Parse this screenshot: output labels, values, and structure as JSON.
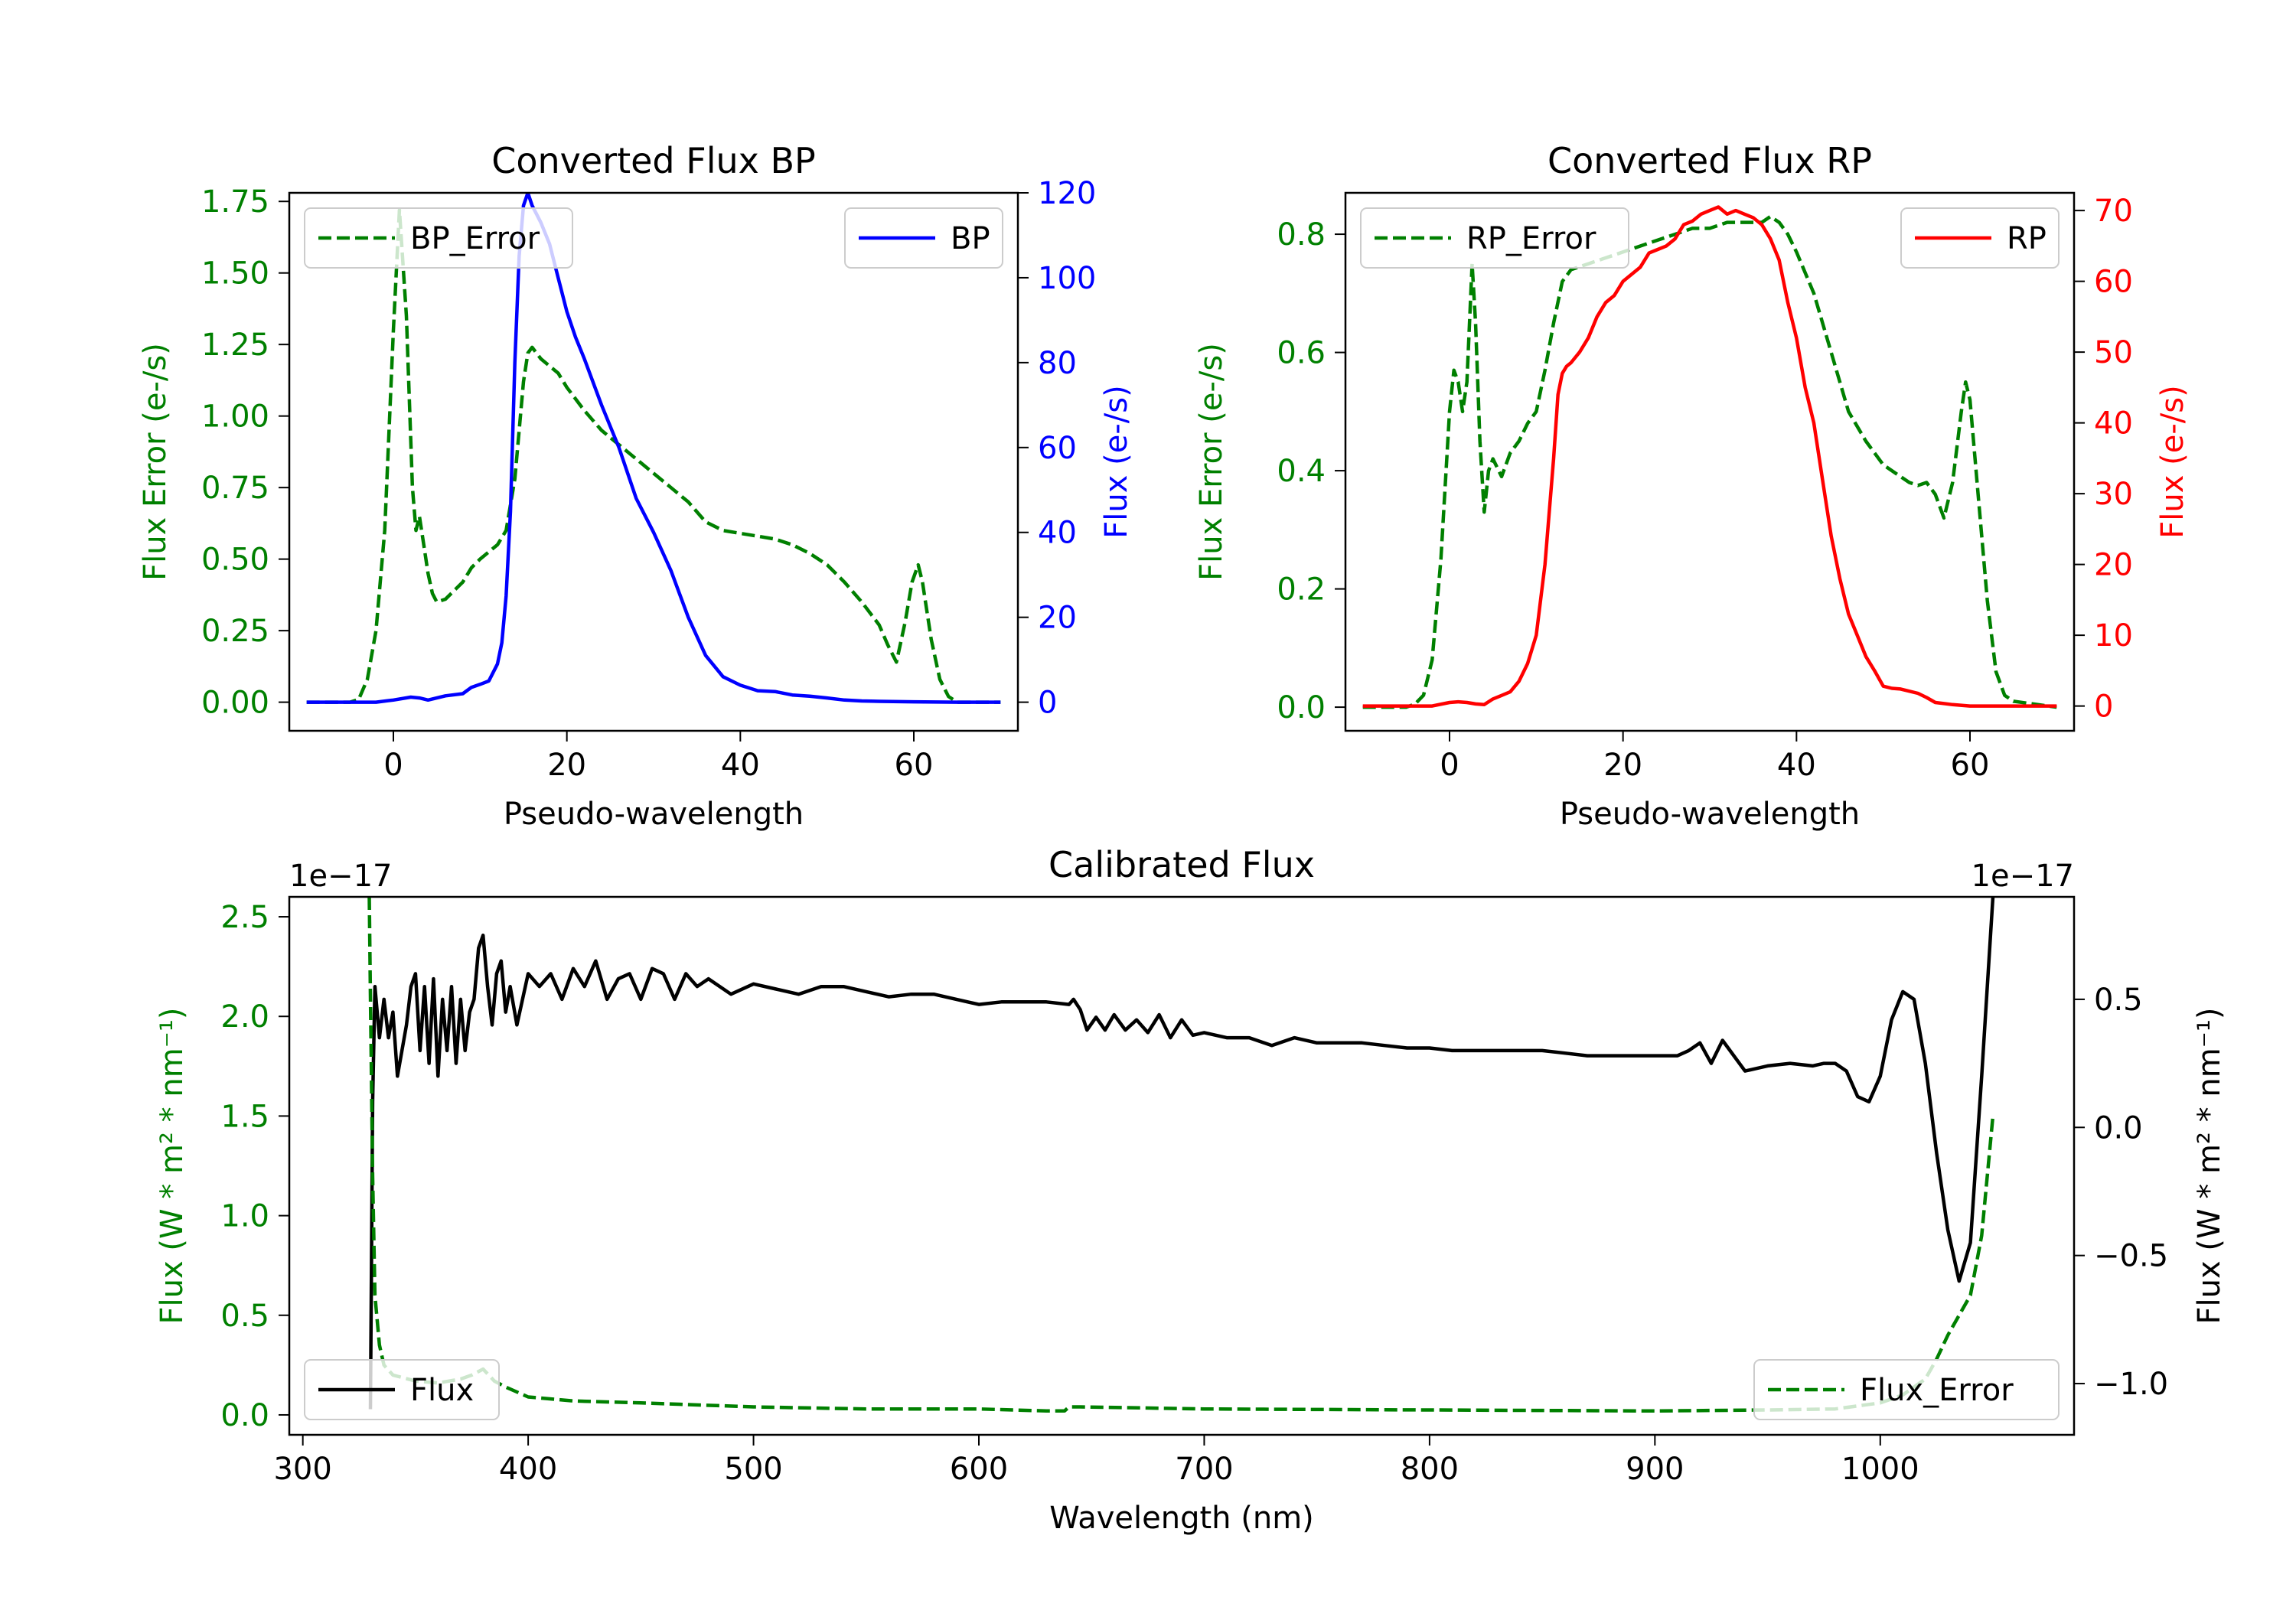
{
  "chart_data": [
    {
      "type": "line",
      "title": "Converted Flux BP",
      "xlabel": "Pseudo-wavelength",
      "ylabel_left": "Flux Error (e-/s)",
      "ylabel_right": "Flux (e-/s)",
      "xlim": [
        -12,
        72
      ],
      "ylim_left": [
        -0.1,
        1.78
      ],
      "ylim_right": [
        -6.74,
        120
      ],
      "xticks": [
        "0",
        "20",
        "40",
        "60"
      ],
      "yticks_left": [
        "0.00",
        "0.25",
        "0.50",
        "0.75",
        "1.00",
        "1.25",
        "1.50",
        "1.75"
      ],
      "yticks_right": [
        "0",
        "20",
        "40",
        "60",
        "80",
        "100",
        "120"
      ],
      "colors": {
        "left_axis": "#008000",
        "right_axis": "#0000ff"
      },
      "legend_left": {
        "label": "BP_Error",
        "placement": "upper-left"
      },
      "legend_right": {
        "label": "BP",
        "placement": "upper-right"
      },
      "series": [
        {
          "name": "BP_Error",
          "axis": "left",
          "style": "dashed",
          "color": "#008000",
          "x": [
            -10,
            -5,
            -4,
            -3,
            -2,
            -1,
            0,
            0.7,
            1.5,
            2.2,
            2.6,
            3,
            3.5,
            4,
            4.5,
            5,
            6,
            8,
            9,
            10,
            12,
            13,
            14,
            15,
            15.5,
            16,
            17,
            19,
            20,
            22,
            24,
            26,
            28,
            30,
            32,
            34,
            36,
            38,
            40,
            42,
            44,
            46,
            48,
            50,
            52,
            54,
            56,
            57,
            58,
            59,
            59.8,
            60.5,
            61,
            62,
            63,
            64,
            65,
            67,
            70
          ],
          "values": [
            0,
            0,
            0.01,
            0.08,
            0.25,
            0.6,
            1.3,
            1.72,
            1.35,
            0.75,
            0.6,
            0.65,
            0.55,
            0.45,
            0.38,
            0.35,
            0.36,
            0.42,
            0.47,
            0.5,
            0.55,
            0.6,
            0.78,
            1.12,
            1.22,
            1.24,
            1.2,
            1.15,
            1.1,
            1.02,
            0.95,
            0.9,
            0.85,
            0.8,
            0.75,
            0.7,
            0.63,
            0.6,
            0.59,
            0.58,
            0.57,
            0.55,
            0.52,
            0.48,
            0.42,
            0.35,
            0.27,
            0.2,
            0.14,
            0.28,
            0.42,
            0.48,
            0.42,
            0.22,
            0.08,
            0.02,
            0,
            0,
            0
          ]
        },
        {
          "name": "BP",
          "axis": "right",
          "style": "solid",
          "color": "#0000ff",
          "x": [
            -10,
            -2,
            0,
            2,
            3,
            4,
            6,
            8,
            9,
            10,
            11,
            12,
            12.5,
            13,
            13.5,
            14,
            14.5,
            15,
            15.5,
            16,
            16.5,
            17,
            18,
            19,
            20,
            21,
            22,
            24,
            26,
            28,
            30,
            32,
            34,
            36,
            38,
            40,
            42,
            44,
            46,
            48,
            50,
            52,
            54,
            56,
            60,
            65,
            70
          ],
          "values": [
            0,
            0,
            0.5,
            1.2,
            1.0,
            0.5,
            1.5,
            2,
            3.5,
            4.2,
            5,
            9,
            14,
            25,
            45,
            80,
            105,
            117,
            120,
            117,
            115,
            113,
            108,
            100,
            92,
            86,
            81,
            70,
            60,
            48,
            40,
            31,
            20,
            11,
            6,
            4,
            2.7,
            2.5,
            1.7,
            1.4,
            1,
            0.5,
            0.3,
            0.2,
            0.1,
            0,
            0
          ]
        }
      ]
    },
    {
      "type": "line",
      "title": "Converted Flux RP",
      "xlabel": "Pseudo-wavelength",
      "ylabel_left": "Flux Error (e-/s)",
      "ylabel_right": "Flux (e-/s)",
      "xlim": [
        -12,
        72
      ],
      "ylim_left": [
        -0.04,
        0.87
      ],
      "ylim_right": [
        -3.5,
        72.5
      ],
      "xticks": [
        "0",
        "20",
        "40",
        "60"
      ],
      "yticks_left": [
        "0.0",
        "0.2",
        "0.4",
        "0.6",
        "0.8"
      ],
      "yticks_right": [
        "0",
        "10",
        "20",
        "30",
        "40",
        "50",
        "60",
        "70"
      ],
      "colors": {
        "left_axis": "#008000",
        "right_axis": "#ff0000"
      },
      "legend_left": {
        "label": "RP_Error",
        "placement": "upper-left"
      },
      "legend_right": {
        "label": "RP",
        "placement": "upper-right"
      },
      "series": [
        {
          "name": "RP_Error",
          "axis": "left",
          "style": "dashed",
          "color": "#008000",
          "x": [
            -10,
            -5,
            -4,
            -3,
            -2,
            -1,
            0,
            0.5,
            1,
            1.5,
            2,
            2.6,
            3,
            3.5,
            4,
            4.5,
            5,
            6,
            7,
            8,
            9,
            10,
            11,
            12,
            13,
            14,
            16,
            18,
            20,
            22,
            24,
            26,
            28,
            30,
            32,
            34,
            36,
            37,
            38,
            39,
            40,
            42,
            44,
            46,
            48,
            50,
            52,
            53,
            54,
            55,
            56,
            57,
            58,
            59,
            59.5,
            60,
            61,
            62,
            63,
            64,
            65,
            70
          ],
          "values": [
            0,
            0,
            0.005,
            0.02,
            0.08,
            0.25,
            0.5,
            0.57,
            0.55,
            0.5,
            0.55,
            0.75,
            0.65,
            0.45,
            0.33,
            0.4,
            0.42,
            0.39,
            0.43,
            0.45,
            0.48,
            0.5,
            0.57,
            0.65,
            0.72,
            0.74,
            0.75,
            0.76,
            0.77,
            0.78,
            0.79,
            0.8,
            0.81,
            0.81,
            0.82,
            0.82,
            0.82,
            0.83,
            0.82,
            0.8,
            0.77,
            0.7,
            0.6,
            0.5,
            0.45,
            0.41,
            0.39,
            0.38,
            0.375,
            0.38,
            0.36,
            0.32,
            0.38,
            0.5,
            0.55,
            0.52,
            0.35,
            0.18,
            0.06,
            0.02,
            0.01,
            0
          ]
        },
        {
          "name": "RP",
          "axis": "right",
          "style": "solid",
          "color": "#ff0000",
          "x": [
            -10,
            -2,
            0,
            1,
            2,
            3,
            4,
            5,
            6,
            7,
            8,
            9,
            10,
            11,
            12,
            12.5,
            13,
            13.5,
            14,
            15,
            16,
            17,
            18,
            19,
            20,
            21,
            22,
            23,
            24,
            25,
            26,
            27,
            28,
            29,
            30,
            31,
            32,
            33,
            34,
            35,
            36,
            37,
            38,
            39,
            40,
            41,
            42,
            43,
            44,
            45,
            46,
            47,
            48,
            49,
            50,
            51,
            52,
            54,
            55,
            56,
            58,
            60,
            65,
            70
          ],
          "values": [
            0,
            0,
            0.5,
            0.6,
            0.5,
            0.3,
            0.2,
            1,
            1.5,
            2,
            3.5,
            6,
            10,
            20,
            35,
            44,
            47,
            48,
            48.5,
            50,
            52,
            55,
            57,
            58,
            60,
            61,
            62,
            64,
            64.5,
            65,
            66,
            68,
            68.5,
            69.5,
            70,
            70.5,
            69.5,
            70,
            69.5,
            69,
            68,
            66,
            63,
            57,
            52,
            45,
            40,
            32,
            24,
            18,
            13,
            10,
            7,
            5,
            2.8,
            2.5,
            2.4,
            1.8,
            1.2,
            0.5,
            0.2,
            0,
            0,
            0
          ]
        }
      ]
    },
    {
      "type": "line",
      "title": "Calibrated Flux",
      "xlabel": "Wavelength (nm)",
      "ylabel_left": "Flux (W * m² * nm⁻¹)",
      "ylabel_right": "Flux (W * m² * nm⁻¹)",
      "offset_left": "1e−17",
      "offset_right": "1e−17",
      "xlim": [
        294,
        1086
      ],
      "ylim_left": [
        -0.1,
        2.6
      ],
      "ylim_right": [
        -1.2,
        0.9
      ],
      "xticks": [
        "300",
        "400",
        "500",
        "600",
        "700",
        "800",
        "900",
        "1000"
      ],
      "yticks_left": [
        "0.0",
        "0.5",
        "1.0",
        "1.5",
        "2.0",
        "2.5"
      ],
      "yticks_right": [
        "−1.0",
        "−0.5",
        "0.0",
        "0.5"
      ],
      "colors": {
        "left_axis": "#008000",
        "right_axis": "#000000"
      },
      "legend_left": {
        "label": "Flux",
        "placement": "lower-left"
      },
      "legend_right": {
        "label": "Flux_Error",
        "placement": "lower-right"
      },
      "series": [
        {
          "name": "Flux",
          "axis": "right",
          "style": "solid",
          "color": "#000000",
          "x": [
            330,
            331,
            332,
            334,
            336,
            338,
            340,
            342,
            344,
            346,
            348,
            350,
            352,
            354,
            356,
            358,
            360,
            362,
            364,
            366,
            368,
            370,
            372,
            374,
            376,
            378,
            380,
            382,
            384,
            386,
            388,
            390,
            392,
            395,
            400,
            405,
            410,
            415,
            420,
            425,
            430,
            435,
            440,
            445,
            450,
            455,
            460,
            465,
            470,
            475,
            480,
            490,
            500,
            510,
            520,
            530,
            540,
            550,
            560,
            570,
            580,
            590,
            600,
            610,
            620,
            630,
            640,
            642,
            645,
            648,
            652,
            656,
            660,
            665,
            670,
            675,
            680,
            685,
            690,
            695,
            700,
            710,
            720,
            730,
            740,
            750,
            760,
            770,
            780,
            790,
            800,
            810,
            820,
            830,
            840,
            850,
            860,
            870,
            880,
            890,
            900,
            910,
            915,
            920,
            925,
            930,
            940,
            950,
            960,
            970,
            975,
            980,
            985,
            990,
            995,
            1000,
            1005,
            1010,
            1015,
            1020,
            1025,
            1030,
            1035,
            1040,
            1045,
            1050
          ],
          "values": [
            -1.1,
            0.1,
            0.55,
            0.35,
            0.5,
            0.35,
            0.45,
            0.2,
            0.3,
            0.4,
            0.55,
            0.6,
            0.3,
            0.55,
            0.25,
            0.58,
            0.2,
            0.5,
            0.3,
            0.55,
            0.25,
            0.5,
            0.3,
            0.45,
            0.5,
            0.7,
            0.75,
            0.55,
            0.4,
            0.6,
            0.65,
            0.45,
            0.55,
            0.4,
            0.6,
            0.55,
            0.6,
            0.5,
            0.62,
            0.55,
            0.65,
            0.5,
            0.58,
            0.6,
            0.5,
            0.62,
            0.6,
            0.5,
            0.6,
            0.55,
            0.58,
            0.52,
            0.56,
            0.54,
            0.52,
            0.55,
            0.55,
            0.53,
            0.51,
            0.52,
            0.52,
            0.5,
            0.48,
            0.49,
            0.49,
            0.49,
            0.48,
            0.5,
            0.46,
            0.38,
            0.43,
            0.38,
            0.44,
            0.38,
            0.42,
            0.37,
            0.44,
            0.35,
            0.42,
            0.36,
            0.37,
            0.35,
            0.35,
            0.32,
            0.35,
            0.33,
            0.33,
            0.33,
            0.32,
            0.31,
            0.31,
            0.3,
            0.3,
            0.3,
            0.3,
            0.3,
            0.29,
            0.28,
            0.28,
            0.28,
            0.28,
            0.28,
            0.3,
            0.33,
            0.25,
            0.34,
            0.22,
            0.24,
            0.25,
            0.24,
            0.25,
            0.25,
            0.22,
            0.12,
            0.1,
            0.2,
            0.42,
            0.53,
            0.5,
            0.25,
            -0.1,
            -0.4,
            -0.6,
            -0.45,
            0.2,
            0.9
          ]
        },
        {
          "name": "Flux_Error",
          "axis": "left",
          "style": "dashed",
          "color": "#008000",
          "x": [
            329.5,
            330,
            331,
            332,
            334,
            336,
            340,
            350,
            360,
            370,
            375,
            380,
            385,
            390,
            400,
            420,
            450,
            500,
            550,
            600,
            630,
            638,
            640,
            645,
            700,
            800,
            900,
            950,
            980,
            1000,
            1010,
            1020,
            1025,
            1030,
            1035,
            1040,
            1045,
            1050
          ],
          "values": [
            2.6,
            2.1,
            1.2,
            0.6,
            0.35,
            0.25,
            0.2,
            0.17,
            0.16,
            0.18,
            0.2,
            0.23,
            0.17,
            0.14,
            0.09,
            0.07,
            0.06,
            0.04,
            0.03,
            0.03,
            0.02,
            0.02,
            0.04,
            0.04,
            0.03,
            0.025,
            0.02,
            0.025,
            0.03,
            0.06,
            0.1,
            0.18,
            0.28,
            0.4,
            0.5,
            0.6,
            0.9,
            1.5
          ]
        }
      ]
    }
  ]
}
